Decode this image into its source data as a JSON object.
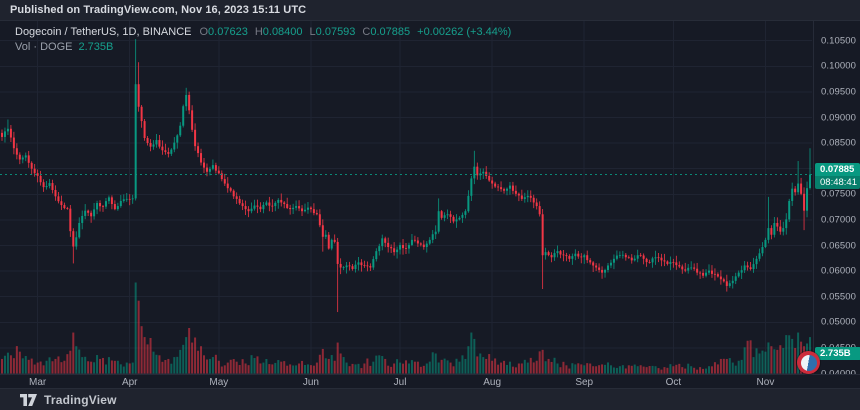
{
  "header": {
    "published": "Published on TradingView.com, Nov 16, 2023 15:11 UTC"
  },
  "legend": {
    "symbol_line": "Dogecoin / TetherUS, 1D, BINANCE",
    "ohlc": [
      {
        "label": "O",
        "value": "0.07623"
      },
      {
        "label": "H",
        "value": "0.08400"
      },
      {
        "label": "L",
        "value": "0.07593"
      },
      {
        "label": "C",
        "value": "0.07885"
      }
    ],
    "change": "+0.00262 (+3.44%)",
    "vol_label": "Vol · DOGE",
    "vol_value": "2.735B"
  },
  "price_axis": {
    "ticks": [
      "0.10500",
      "0.10000",
      "0.09500",
      "0.09000",
      "0.08500",
      "0.08000",
      "0.07500",
      "0.07000",
      "0.06500",
      "0.06000",
      "0.05500",
      "0.05000",
      "0.04500",
      "0.04000"
    ],
    "price_badge": {
      "price": "0.07885",
      "countdown": "08:48:41"
    },
    "volume_badge": "2.735B"
  },
  "time_axis": {
    "months": [
      {
        "label": "Mar",
        "i": 12
      },
      {
        "label": "Apr",
        "i": 43
      },
      {
        "label": "May",
        "i": 73
      },
      {
        "label": "Jun",
        "i": 104
      },
      {
        "label": "Jul",
        "i": 134
      },
      {
        "label": "Aug",
        "i": 165
      },
      {
        "label": "Sep",
        "i": 196
      },
      {
        "label": "Oct",
        "i": 226
      },
      {
        "label": "Nov",
        "i": 257
      }
    ]
  },
  "footer": {
    "brand": "TradingView"
  },
  "colors": {
    "up": "#089981",
    "down": "#f23645",
    "accent": "#089981",
    "grid": "#1f2432",
    "bg": "#161a25",
    "panel": "#1f232e"
  },
  "chart_data": {
    "type": "candlestick",
    "title": "Dogecoin / TetherUS, 1D, BINANCE",
    "symbol": "DOGEUSDT",
    "interval": "1D",
    "exchange": "BINANCE",
    "snapshot_time": "Nov 16, 2023 15:11 UTC",
    "ylim": [
      0.04,
      0.105
    ],
    "y_ticks": [
      0.105,
      0.1,
      0.095,
      0.09,
      0.085,
      0.08,
      0.075,
      0.07,
      0.065,
      0.06,
      0.055,
      0.05,
      0.045,
      0.04
    ],
    "n_candles": 273,
    "current_price": 0.07885,
    "last_candle": {
      "open": 0.07623,
      "high": 0.084,
      "low": 0.07593,
      "close": 0.07885,
      "volume_display": "2.735B"
    },
    "close_waypoints": [
      [
        0,
        0.0862
      ],
      [
        2,
        0.0878
      ],
      [
        4,
        0.084
      ],
      [
        6,
        0.0818
      ],
      [
        8,
        0.0826
      ],
      [
        10,
        0.08
      ],
      [
        12,
        0.0786
      ],
      [
        14,
        0.0764
      ],
      [
        16,
        0.0772
      ],
      [
        18,
        0.0746
      ],
      [
        20,
        0.0729
      ],
      [
        22,
        0.0722
      ],
      [
        23,
        0.0678
      ],
      [
        24,
        0.0648
      ],
      [
        25,
        0.0666
      ],
      [
        26,
        0.0694
      ],
      [
        28,
        0.0718
      ],
      [
        30,
        0.0707
      ],
      [
        32,
        0.0733
      ],
      [
        34,
        0.0726
      ],
      [
        36,
        0.0744
      ],
      [
        38,
        0.0721
      ],
      [
        40,
        0.0737
      ],
      [
        42,
        0.0741
      ],
      [
        44,
        0.0742
      ],
      [
        45,
        0.0965
      ],
      [
        46,
        0.0921
      ],
      [
        47,
        0.0893
      ],
      [
        48,
        0.086
      ],
      [
        50,
        0.0843
      ],
      [
        52,
        0.0856
      ],
      [
        54,
        0.0836
      ],
      [
        56,
        0.0829
      ],
      [
        58,
        0.0851
      ],
      [
        60,
        0.0884
      ],
      [
        61,
        0.0922
      ],
      [
        62,
        0.0944
      ],
      [
        63,
        0.0914
      ],
      [
        64,
        0.0876
      ],
      [
        65,
        0.0844
      ],
      [
        67,
        0.0812
      ],
      [
        69,
        0.0794
      ],
      [
        71,
        0.0807
      ],
      [
        73,
        0.0791
      ],
      [
        75,
        0.0771
      ],
      [
        77,
        0.0757
      ],
      [
        79,
        0.0741
      ],
      [
        81,
        0.0727
      ],
      [
        83,
        0.0717
      ],
      [
        85,
        0.0728
      ],
      [
        87,
        0.0721
      ],
      [
        89,
        0.0734
      ],
      [
        91,
        0.0727
      ],
      [
        93,
        0.0739
      ],
      [
        95,
        0.0731
      ],
      [
        97,
        0.0721
      ],
      [
        99,
        0.0727
      ],
      [
        101,
        0.0717
      ],
      [
        103,
        0.0724
      ],
      [
        104,
        0.0721
      ],
      [
        106,
        0.0711
      ],
      [
        108,
        0.0667
      ],
      [
        109,
        0.0671
      ],
      [
        110,
        0.0644
      ],
      [
        111,
        0.0661
      ],
      [
        112,
        0.0657
      ],
      [
        113,
        0.0614
      ],
      [
        114,
        0.0607
      ],
      [
        116,
        0.0611
      ],
      [
        118,
        0.0604
      ],
      [
        120,
        0.0617
      ],
      [
        122,
        0.0611
      ],
      [
        124,
        0.0607
      ],
      [
        126,
        0.0639
      ],
      [
        128,
        0.0664
      ],
      [
        130,
        0.0647
      ],
      [
        132,
        0.0637
      ],
      [
        134,
        0.0651
      ],
      [
        136,
        0.0644
      ],
      [
        138,
        0.0661
      ],
      [
        140,
        0.0654
      ],
      [
        142,
        0.0647
      ],
      [
        144,
        0.0661
      ],
      [
        146,
        0.0677
      ],
      [
        147,
        0.0717
      ],
      [
        148,
        0.0704
      ],
      [
        150,
        0.0711
      ],
      [
        152,
        0.0697
      ],
      [
        154,
        0.0704
      ],
      [
        156,
        0.0717
      ],
      [
        157,
        0.0747
      ],
      [
        158,
        0.0781
      ],
      [
        159,
        0.0804
      ],
      [
        160,
        0.0787
      ],
      [
        162,
        0.0794
      ],
      [
        164,
        0.0777
      ],
      [
        165,
        0.0771
      ],
      [
        167,
        0.0764
      ],
      [
        169,
        0.0757
      ],
      [
        171,
        0.0767
      ],
      [
        173,
        0.0751
      ],
      [
        175,
        0.0741
      ],
      [
        177,
        0.0747
      ],
      [
        179,
        0.0734
      ],
      [
        180,
        0.0727
      ],
      [
        181,
        0.0711
      ],
      [
        182,
        0.0631
      ],
      [
        183,
        0.0637
      ],
      [
        185,
        0.0627
      ],
      [
        187,
        0.0639
      ],
      [
        189,
        0.0631
      ],
      [
        191,
        0.0624
      ],
      [
        193,
        0.0634
      ],
      [
        195,
        0.0627
      ],
      [
        196,
        0.0631
      ],
      [
        198,
        0.0617
      ],
      [
        200,
        0.0607
      ],
      [
        202,
        0.0597
      ],
      [
        204,
        0.0611
      ],
      [
        206,
        0.0624
      ],
      [
        208,
        0.0631
      ],
      [
        210,
        0.0627
      ],
      [
        212,
        0.0621
      ],
      [
        214,
        0.0631
      ],
      [
        216,
        0.0624
      ],
      [
        218,
        0.0617
      ],
      [
        220,
        0.0627
      ],
      [
        222,
        0.0621
      ],
      [
        224,
        0.0614
      ],
      [
        226,
        0.0617
      ],
      [
        228,
        0.0609
      ],
      [
        230,
        0.0601
      ],
      [
        232,
        0.0607
      ],
      [
        234,
        0.0597
      ],
      [
        236,
        0.0591
      ],
      [
        238,
        0.0601
      ],
      [
        240,
        0.0594
      ],
      [
        242,
        0.0584
      ],
      [
        244,
        0.0571
      ],
      [
        246,
        0.0581
      ],
      [
        248,
        0.0597
      ],
      [
        250,
        0.0611
      ],
      [
        252,
        0.0604
      ],
      [
        254,
        0.0624
      ],
      [
        256,
        0.0647
      ],
      [
        257,
        0.0661
      ],
      [
        258,
        0.0684
      ],
      [
        259,
        0.0671
      ],
      [
        260,
        0.0694
      ],
      [
        261,
        0.0687
      ],
      [
        262,
        0.0677
      ],
      [
        263,
        0.0684
      ],
      [
        264,
        0.0701
      ],
      [
        265,
        0.0737
      ],
      [
        266,
        0.0761
      ],
      [
        267,
        0.0754
      ],
      [
        268,
        0.0771
      ],
      [
        269,
        0.0751
      ],
      [
        270,
        0.0718
      ],
      [
        271,
        0.0762
      ],
      [
        272,
        0.07885
      ]
    ],
    "wick_overrides": [
      {
        "i": 2,
        "h": 0.0896
      },
      {
        "i": 24,
        "l": 0.0615
      },
      {
        "i": 45,
        "h": 0.1053,
        "l": 0.0738
      },
      {
        "i": 46,
        "h": 0.1008
      },
      {
        "i": 62,
        "h": 0.0958
      },
      {
        "i": 108,
        "l": 0.0638
      },
      {
        "i": 113,
        "l": 0.052
      },
      {
        "i": 147,
        "h": 0.0742
      },
      {
        "i": 159,
        "h": 0.0835
      },
      {
        "i": 182,
        "l": 0.0565
      },
      {
        "i": 202,
        "l": 0.0585
      },
      {
        "i": 244,
        "l": 0.056
      },
      {
        "i": 258,
        "h": 0.0745
      },
      {
        "i": 268,
        "h": 0.0815
      },
      {
        "i": 270,
        "l": 0.068
      },
      {
        "i": 272,
        "o": 0.07623,
        "h": 0.084,
        "l": 0.07593,
        "c": 0.07885
      }
    ],
    "volume_waypoints": [
      [
        0,
        0.16
      ],
      [
        3,
        0.2
      ],
      [
        6,
        0.24
      ],
      [
        9,
        0.15
      ],
      [
        12,
        0.12
      ],
      [
        15,
        0.14
      ],
      [
        18,
        0.16
      ],
      [
        21,
        0.14
      ],
      [
        23,
        0.25
      ],
      [
        24,
        0.45
      ],
      [
        25,
        0.3
      ],
      [
        27,
        0.18
      ],
      [
        30,
        0.13
      ],
      [
        33,
        0.16
      ],
      [
        36,
        0.18
      ],
      [
        39,
        0.14
      ],
      [
        42,
        0.12
      ],
      [
        44,
        0.12
      ],
      [
        45,
        1.0
      ],
      [
        46,
        0.8
      ],
      [
        47,
        0.52
      ],
      [
        48,
        0.4
      ],
      [
        49,
        0.32
      ],
      [
        51,
        0.24
      ],
      [
        53,
        0.2
      ],
      [
        56,
        0.16
      ],
      [
        58,
        0.18
      ],
      [
        60,
        0.26
      ],
      [
        62,
        0.4
      ],
      [
        63,
        0.5
      ],
      [
        64,
        0.34
      ],
      [
        66,
        0.25
      ],
      [
        68,
        0.2
      ],
      [
        70,
        0.16
      ],
      [
        73,
        0.14
      ],
      [
        76,
        0.12
      ],
      [
        79,
        0.13
      ],
      [
        82,
        0.11
      ],
      [
        85,
        0.17
      ],
      [
        88,
        0.12
      ],
      [
        91,
        0.1
      ],
      [
        94,
        0.13
      ],
      [
        97,
        0.1
      ],
      [
        100,
        0.11
      ],
      [
        103,
        0.1
      ],
      [
        106,
        0.12
      ],
      [
        108,
        0.27
      ],
      [
        110,
        0.16
      ],
      [
        112,
        0.14
      ],
      [
        113,
        0.34
      ],
      [
        114,
        0.22
      ],
      [
        116,
        0.12
      ],
      [
        119,
        0.1
      ],
      [
        122,
        0.11
      ],
      [
        125,
        0.13
      ],
      [
        127,
        0.2
      ],
      [
        129,
        0.16
      ],
      [
        132,
        0.11
      ],
      [
        134,
        0.12
      ],
      [
        137,
        0.11
      ],
      [
        140,
        0.13
      ],
      [
        143,
        0.11
      ],
      [
        146,
        0.22
      ],
      [
        148,
        0.15
      ],
      [
        151,
        0.12
      ],
      [
        154,
        0.13
      ],
      [
        156,
        0.16
      ],
      [
        157,
        0.3
      ],
      [
        158,
        0.45
      ],
      [
        159,
        0.38
      ],
      [
        161,
        0.22
      ],
      [
        163,
        0.16
      ],
      [
        165,
        0.14
      ],
      [
        168,
        0.12
      ],
      [
        171,
        0.13
      ],
      [
        174,
        0.11
      ],
      [
        177,
        0.12
      ],
      [
        180,
        0.14
      ],
      [
        182,
        0.26
      ],
      [
        184,
        0.16
      ],
      [
        187,
        0.11
      ],
      [
        190,
        0.09
      ],
      [
        193,
        0.1
      ],
      [
        196,
        0.09
      ],
      [
        199,
        0.08
      ],
      [
        202,
        0.1
      ],
      [
        205,
        0.09
      ],
      [
        208,
        0.08
      ],
      [
        211,
        0.09
      ],
      [
        214,
        0.08
      ],
      [
        217,
        0.07
      ],
      [
        220,
        0.08
      ],
      [
        223,
        0.07
      ],
      [
        226,
        0.08
      ],
      [
        229,
        0.07
      ],
      [
        232,
        0.08
      ],
      [
        235,
        0.07
      ],
      [
        238,
        0.08
      ],
      [
        241,
        0.1
      ],
      [
        244,
        0.16
      ],
      [
        246,
        0.12
      ],
      [
        248,
        0.14
      ],
      [
        251,
        0.36
      ],
      [
        253,
        0.18
      ],
      [
        255,
        0.22
      ],
      [
        257,
        0.24
      ],
      [
        259,
        0.3
      ],
      [
        261,
        0.26
      ],
      [
        263,
        0.28
      ],
      [
        265,
        0.42
      ],
      [
        266,
        0.38
      ],
      [
        267,
        0.28
      ],
      [
        268,
        0.45
      ],
      [
        269,
        0.35
      ],
      [
        270,
        0.3
      ],
      [
        271,
        0.33
      ],
      [
        272,
        0.4
      ]
    ]
  }
}
